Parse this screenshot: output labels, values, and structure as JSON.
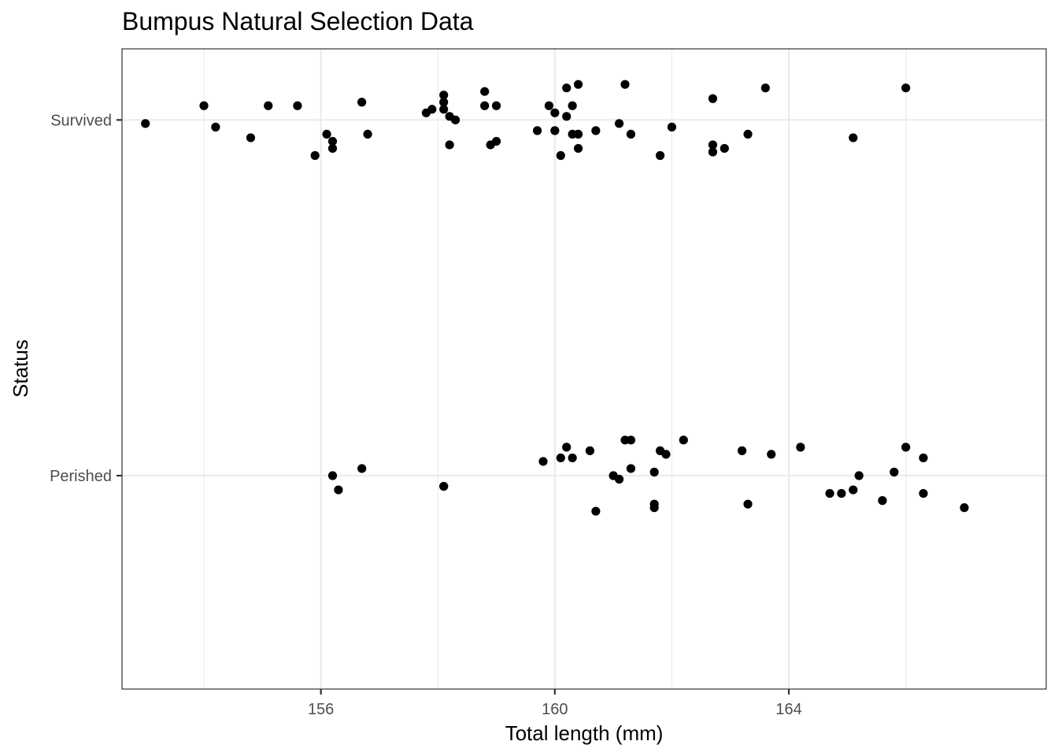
{
  "chart_data": {
    "type": "scatter",
    "title": "Bumpus Natural Selection Data",
    "xlabel": "Total length (mm)",
    "ylabel": "Status",
    "xlim": [
      152.6,
      168.4
    ],
    "x_ticks": [
      156,
      160,
      164
    ],
    "x_tick_labels": [
      "156",
      "160",
      "164"
    ],
    "categories": [
      "Perished",
      "Survived"
    ],
    "grid": true,
    "point_color": "#000000",
    "series": [
      {
        "category": "Survived",
        "points": [
          {
            "x": 153.0,
            "jitter": -0.01
          },
          {
            "x": 154.0,
            "jitter": 0.04
          },
          {
            "x": 154.2,
            "jitter": -0.02
          },
          {
            "x": 154.8,
            "jitter": -0.05
          },
          {
            "x": 155.1,
            "jitter": 0.04
          },
          {
            "x": 155.6,
            "jitter": 0.04
          },
          {
            "x": 155.9,
            "jitter": -0.1
          },
          {
            "x": 156.1,
            "jitter": -0.04
          },
          {
            "x": 156.2,
            "jitter": -0.08
          },
          {
            "x": 156.2,
            "jitter": -0.06
          },
          {
            "x": 156.7,
            "jitter": 0.05
          },
          {
            "x": 156.8,
            "jitter": -0.04
          },
          {
            "x": 157.8,
            "jitter": 0.02
          },
          {
            "x": 157.9,
            "jitter": 0.03
          },
          {
            "x": 158.1,
            "jitter": 0.07
          },
          {
            "x": 158.1,
            "jitter": 0.05
          },
          {
            "x": 158.1,
            "jitter": 0.03
          },
          {
            "x": 158.2,
            "jitter": 0.01
          },
          {
            "x": 158.3,
            "jitter": 0.0
          },
          {
            "x": 158.2,
            "jitter": -0.07
          },
          {
            "x": 158.8,
            "jitter": 0.08
          },
          {
            "x": 158.8,
            "jitter": 0.04
          },
          {
            "x": 158.9,
            "jitter": -0.07
          },
          {
            "x": 159.0,
            "jitter": 0.04
          },
          {
            "x": 159.0,
            "jitter": -0.06
          },
          {
            "x": 159.7,
            "jitter": -0.03
          },
          {
            "x": 159.9,
            "jitter": 0.04
          },
          {
            "x": 160.0,
            "jitter": 0.02
          },
          {
            "x": 160.0,
            "jitter": -0.03
          },
          {
            "x": 160.1,
            "jitter": -0.1
          },
          {
            "x": 160.2,
            "jitter": 0.09
          },
          {
            "x": 160.2,
            "jitter": 0.01
          },
          {
            "x": 160.3,
            "jitter": 0.04
          },
          {
            "x": 160.3,
            "jitter": -0.04
          },
          {
            "x": 160.4,
            "jitter": 0.1
          },
          {
            "x": 160.4,
            "jitter": -0.04
          },
          {
            "x": 160.4,
            "jitter": -0.08
          },
          {
            "x": 160.7,
            "jitter": -0.03
          },
          {
            "x": 161.1,
            "jitter": -0.01
          },
          {
            "x": 161.2,
            "jitter": 0.1
          },
          {
            "x": 161.3,
            "jitter": -0.04
          },
          {
            "x": 161.8,
            "jitter": -0.1
          },
          {
            "x": 162.0,
            "jitter": -0.02
          },
          {
            "x": 162.7,
            "jitter": -0.07
          },
          {
            "x": 162.7,
            "jitter": 0.06
          },
          {
            "x": 162.7,
            "jitter": -0.09
          },
          {
            "x": 162.9,
            "jitter": -0.08
          },
          {
            "x": 163.3,
            "jitter": -0.04
          },
          {
            "x": 163.6,
            "jitter": 0.09
          },
          {
            "x": 165.1,
            "jitter": -0.05
          },
          {
            "x": 166.0,
            "jitter": 0.09
          }
        ]
      },
      {
        "category": "Perished",
        "points": [
          {
            "x": 156.2,
            "jitter": 0.0
          },
          {
            "x": 156.3,
            "jitter": -0.04
          },
          {
            "x": 156.7,
            "jitter": 0.02
          },
          {
            "x": 158.1,
            "jitter": -0.03
          },
          {
            "x": 158.1,
            "jitter": -0.03
          },
          {
            "x": 159.8,
            "jitter": 0.04
          },
          {
            "x": 160.1,
            "jitter": 0.05
          },
          {
            "x": 160.2,
            "jitter": 0.08
          },
          {
            "x": 160.3,
            "jitter": 0.05
          },
          {
            "x": 160.6,
            "jitter": 0.07
          },
          {
            "x": 160.7,
            "jitter": -0.1
          },
          {
            "x": 161.0,
            "jitter": 0.0
          },
          {
            "x": 161.1,
            "jitter": -0.01
          },
          {
            "x": 161.2,
            "jitter": 0.1
          },
          {
            "x": 161.3,
            "jitter": 0.1
          },
          {
            "x": 161.3,
            "jitter": 0.02
          },
          {
            "x": 161.7,
            "jitter": 0.01
          },
          {
            "x": 161.7,
            "jitter": -0.08
          },
          {
            "x": 161.7,
            "jitter": -0.09
          },
          {
            "x": 161.8,
            "jitter": 0.07
          },
          {
            "x": 161.9,
            "jitter": 0.06
          },
          {
            "x": 162.2,
            "jitter": 0.1
          },
          {
            "x": 163.2,
            "jitter": 0.07
          },
          {
            "x": 163.3,
            "jitter": -0.08
          },
          {
            "x": 163.7,
            "jitter": 0.06
          },
          {
            "x": 164.2,
            "jitter": 0.08
          },
          {
            "x": 164.7,
            "jitter": -0.05
          },
          {
            "x": 164.9,
            "jitter": -0.05
          },
          {
            "x": 165.1,
            "jitter": -0.04
          },
          {
            "x": 165.2,
            "jitter": 0.0
          },
          {
            "x": 165.6,
            "jitter": -0.07
          },
          {
            "x": 165.8,
            "jitter": 0.01
          },
          {
            "x": 166.0,
            "jitter": 0.08
          },
          {
            "x": 166.3,
            "jitter": 0.05
          },
          {
            "x": 166.3,
            "jitter": -0.05
          },
          {
            "x": 167.0,
            "jitter": -0.09
          }
        ]
      }
    ]
  }
}
